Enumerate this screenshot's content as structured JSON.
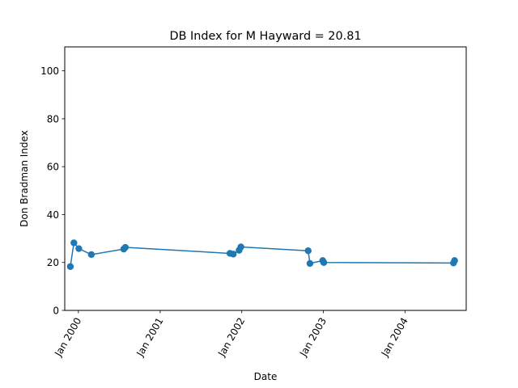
{
  "chart_data": {
    "type": "line",
    "title": "DB Index for M Hayward = 20.81",
    "xlabel": "Date",
    "ylabel": "Don Bradman Index",
    "xlim": [
      "1999-11-01",
      "2004-10-01"
    ],
    "ylim": [
      0,
      110
    ],
    "x_ticks": [
      {
        "date": "2000-01-01",
        "label": "Jan 2000"
      },
      {
        "date": "2001-01-01",
        "label": "Jan 2001"
      },
      {
        "date": "2002-01-01",
        "label": "Jan 2002"
      },
      {
        "date": "2003-01-01",
        "label": "Jan 2003"
      },
      {
        "date": "2004-01-01",
        "label": "Jan 2004"
      }
    ],
    "y_ticks": [
      0,
      20,
      40,
      60,
      80,
      100
    ],
    "grid": false,
    "series": [
      {
        "color": "#1f77b4",
        "points": [
          {
            "x": "1999-11-26",
            "y": 18.3
          },
          {
            "x": "1999-12-12",
            "y": 28.2
          },
          {
            "x": "2000-01-03",
            "y": 25.8
          },
          {
            "x": "2000-02-28",
            "y": 23.3
          },
          {
            "x": "2000-07-22",
            "y": 25.6
          },
          {
            "x": "2000-07-29",
            "y": 26.3
          },
          {
            "x": "2001-11-09",
            "y": 23.8
          },
          {
            "x": "2001-11-24",
            "y": 23.5
          },
          {
            "x": "2001-12-20",
            "y": 25.1
          },
          {
            "x": "2001-12-28",
            "y": 26.5
          },
          {
            "x": "2002-10-25",
            "y": 24.9
          },
          {
            "x": "2002-11-02",
            "y": 19.6
          },
          {
            "x": "2002-12-29",
            "y": 20.8
          },
          {
            "x": "2003-01-03",
            "y": 20.0
          },
          {
            "x": "2004-08-05",
            "y": 19.8
          },
          {
            "x": "2004-08-10",
            "y": 20.81
          }
        ]
      }
    ]
  }
}
